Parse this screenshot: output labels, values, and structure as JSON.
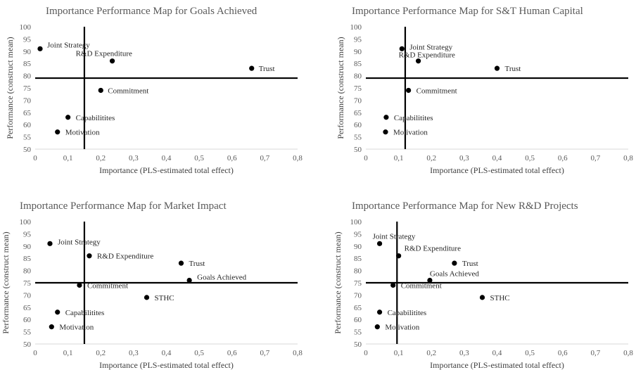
{
  "chart_data": [
    {
      "type": "scatter",
      "title": "Importance Performance Map for Goals Achieved",
      "xlabel": "Importance (PLS-estimated total effect)",
      "ylabel": "Performance (construct mean)",
      "xlim": [
        0,
        0.8
      ],
      "ylim": [
        50,
        100
      ],
      "xticks": [
        "0",
        "0,1",
        "0,2",
        "0,3",
        "0,4",
        "0,5",
        "0,6",
        "0,7",
        "0,8"
      ],
      "yticks": [
        "50",
        "55",
        "60",
        "65",
        "70",
        "75",
        "80",
        "85",
        "90",
        "95",
        "100"
      ],
      "vline": 0.15,
      "hline": 79,
      "points": [
        {
          "label": "Joint Strategy",
          "x": 0.015,
          "y": 91
        },
        {
          "label": "R&D Expenditure",
          "x": 0.235,
          "y": 86
        },
        {
          "label": "Trust",
          "x": 0.66,
          "y": 83
        },
        {
          "label": "Commitment",
          "x": 0.2,
          "y": 74
        },
        {
          "label": "Capabilitites",
          "x": 0.1,
          "y": 63
        },
        {
          "label": "Motivation",
          "x": 0.068,
          "y": 57
        }
      ]
    },
    {
      "type": "scatter",
      "title": "Importance Performance Map for S&T Human Capital",
      "xlabel": "Importance (PLS-estimated total effect)",
      "ylabel": "Performance (construct mean)",
      "xlim": [
        0,
        0.8
      ],
      "ylim": [
        50,
        100
      ],
      "xticks": [
        "0",
        "0,1",
        "0,2",
        "0,3",
        "0,4",
        "0,5",
        "0,6",
        "0,7",
        "0,8"
      ],
      "yticks": [
        "50",
        "55",
        "60",
        "65",
        "70",
        "75",
        "80",
        "85",
        "90",
        "95",
        "100"
      ],
      "vline": 0.12,
      "hline": 79,
      "points": [
        {
          "label": "Joint Strategy",
          "x": 0.11,
          "y": 91
        },
        {
          "label": "R&D Expenditure",
          "x": 0.16,
          "y": 86
        },
        {
          "label": "Trust",
          "x": 0.4,
          "y": 83
        },
        {
          "label": "Commitment",
          "x": 0.13,
          "y": 74
        },
        {
          "label": "Capabilitites",
          "x": 0.062,
          "y": 63
        },
        {
          "label": "Motivation",
          "x": 0.06,
          "y": 57
        }
      ]
    },
    {
      "type": "scatter",
      "title": "Importance Performance Map for Market Impact",
      "xlabel": "Importance (PLS-estimated total effect)",
      "ylabel": "Performance (construct mean)",
      "xlim": [
        0,
        0.8
      ],
      "ylim": [
        50,
        100
      ],
      "xticks": [
        "0",
        "0,1",
        "0,2",
        "0,3",
        "0,4",
        "0,5",
        "0,6",
        "0,7",
        "0,8"
      ],
      "yticks": [
        "50",
        "55",
        "60",
        "65",
        "70",
        "75",
        "80",
        "85",
        "90",
        "95",
        "100"
      ],
      "vline": 0.15,
      "hline": 75,
      "points": [
        {
          "label": "Joint Strategy",
          "x": 0.045,
          "y": 91
        },
        {
          "label": "R&D Expenditure",
          "x": 0.165,
          "y": 86
        },
        {
          "label": "Trust",
          "x": 0.445,
          "y": 83
        },
        {
          "label": "Goals Achieved",
          "x": 0.47,
          "y": 76
        },
        {
          "label": "Commitment",
          "x": 0.135,
          "y": 74
        },
        {
          "label": "STHC",
          "x": 0.34,
          "y": 69
        },
        {
          "label": "Capabilitites",
          "x": 0.068,
          "y": 63
        },
        {
          "label": "Motivation",
          "x": 0.05,
          "y": 57
        }
      ]
    },
    {
      "type": "scatter",
      "title": "Importance Performance Map for New R&D Projects",
      "xlabel": "Importance (PLS-estimated total effect)",
      "ylabel": "Performance (construct mean)",
      "xlim": [
        0,
        0.8
      ],
      "ylim": [
        50,
        100
      ],
      "xticks": [
        "0",
        "0,1",
        "0,2",
        "0,3",
        "0,4",
        "0,5",
        "0,6",
        "0,7",
        "0,8"
      ],
      "yticks": [
        "50",
        "55",
        "60",
        "65",
        "70",
        "75",
        "80",
        "85",
        "90",
        "95",
        "100"
      ],
      "vline": 0.095,
      "hline": 75,
      "points": [
        {
          "label": "Joint Strategy",
          "x": 0.042,
          "y": 91
        },
        {
          "label": "R&D Expenditure",
          "x": 0.1,
          "y": 86
        },
        {
          "label": "Trust",
          "x": 0.27,
          "y": 83
        },
        {
          "label": "Goals Achieved",
          "x": 0.195,
          "y": 76
        },
        {
          "label": "Commitment",
          "x": 0.083,
          "y": 74
        },
        {
          "label": "STHC",
          "x": 0.355,
          "y": 69
        },
        {
          "label": "Capabilitites",
          "x": 0.042,
          "y": 63
        },
        {
          "label": "Motivation",
          "x": 0.035,
          "y": 57
        }
      ]
    }
  ]
}
